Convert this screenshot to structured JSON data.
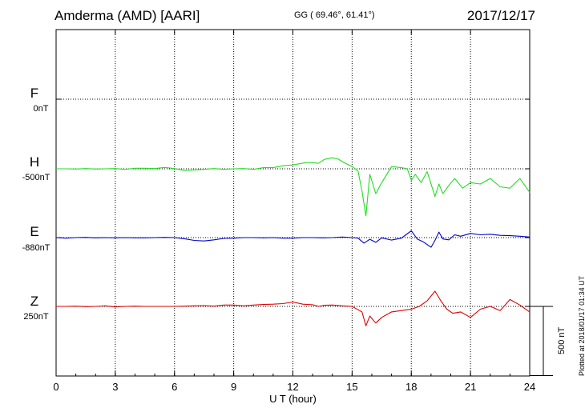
{
  "header": {
    "station": "Amderma (AMD)  [AARI]",
    "coords": "GG ( 69.46°,  61.41°)",
    "date": "2017/12/17"
  },
  "side_note": "Plotted at 2018/01/17 01:34 UT",
  "scale_bar_label": "500 nT",
  "components": [
    {
      "name": "F",
      "baseline_label": "0nT",
      "color": "#ffa500"
    },
    {
      "name": "H",
      "baseline_label": "-500nT",
      "color": "#22dd22"
    },
    {
      "name": "E",
      "baseline_label": "-880nT",
      "color": "#0000cc"
    },
    {
      "name": "Z",
      "baseline_label": "250nT",
      "color": "#dd0000"
    }
  ],
  "chart_data": {
    "type": "line",
    "title": "Amderma (AMD)  [AARI]",
    "xlabel": "U T (hour)",
    "xlim": [
      0,
      24
    ],
    "xticks": [
      0,
      3,
      6,
      9,
      12,
      15,
      18,
      21,
      24
    ],
    "ylabel": "",
    "grid": true,
    "scale_bar_nT": 500,
    "series": [
      {
        "name": "H",
        "unit": "nT offset from baseline",
        "x": [
          0,
          0.5,
          1,
          1.5,
          2,
          2.5,
          3,
          3.5,
          4,
          4.5,
          5,
          5.5,
          6,
          6.5,
          7,
          7.5,
          8,
          8.5,
          9,
          9.5,
          10,
          10.5,
          11,
          11.5,
          12,
          12.3,
          12.7,
          13,
          13.3,
          13.6,
          14,
          14.3,
          14.6,
          15,
          15.3,
          15.5,
          15.7,
          15.9,
          16.2,
          16.5,
          17,
          17.5,
          17.8,
          18,
          18.2,
          18.5,
          18.8,
          19.2,
          19.4,
          19.6,
          19.9,
          20.2,
          20.6,
          21,
          21.5,
          22,
          22.5,
          23,
          23.5,
          24
        ],
        "y": [
          0,
          0,
          -2,
          2,
          -2,
          0,
          2,
          -4,
          4,
          4,
          2,
          10,
          2,
          -12,
          -8,
          -4,
          2,
          -4,
          0,
          2,
          -4,
          8,
          8,
          22,
          28,
          36,
          46,
          44,
          40,
          68,
          80,
          70,
          44,
          16,
          -16,
          -160,
          -340,
          -40,
          -180,
          -100,
          16,
          8,
          0,
          -84,
          -40,
          -100,
          -20,
          -200,
          -110,
          -180,
          -120,
          -70,
          -140,
          -100,
          -110,
          -70,
          -130,
          -140,
          -70,
          -170
        ]
      },
      {
        "name": "E",
        "unit": "nT offset from baseline",
        "x": [
          0,
          0.5,
          1,
          1.5,
          2,
          2.5,
          3,
          3.5,
          4,
          4.5,
          5,
          5.5,
          6,
          6.5,
          7,
          7.5,
          8,
          8.5,
          9,
          9.5,
          10,
          10.5,
          11,
          11.5,
          12,
          12.5,
          13,
          13.5,
          14,
          14.5,
          15,
          15.3,
          15.6,
          15.9,
          16.2,
          16.5,
          17,
          17.5,
          18,
          18.3,
          18.6,
          19,
          19.2,
          19.4,
          19.6,
          19.9,
          20.2,
          20.5,
          21,
          21.5,
          22,
          22.5,
          23,
          23.5,
          24
        ],
        "y": [
          0,
          -4,
          0,
          2,
          -2,
          0,
          -2,
          0,
          -2,
          -2,
          0,
          2,
          0,
          -8,
          -20,
          -24,
          -16,
          -6,
          -4,
          0,
          0,
          -2,
          0,
          -4,
          -4,
          0,
          0,
          -2,
          0,
          4,
          0,
          -4,
          -40,
          -12,
          -34,
          -2,
          -18,
          -4,
          50,
          -10,
          -30,
          -70,
          -20,
          40,
          -10,
          -16,
          20,
          10,
          30,
          20,
          24,
          16,
          14,
          10,
          4
        ]
      },
      {
        "name": "Z",
        "unit": "nT offset from baseline",
        "x": [
          0,
          0.5,
          1,
          1.5,
          2,
          2.5,
          3,
          3.5,
          4,
          4.5,
          5,
          5.5,
          6,
          6.5,
          7,
          7.5,
          8,
          8.5,
          9,
          9.5,
          10,
          10.5,
          11,
          11.5,
          12,
          12.5,
          13,
          13.3,
          13.6,
          14,
          14.5,
          15,
          15.3,
          15.5,
          15.7,
          15.9,
          16.2,
          16.5,
          17,
          17.5,
          18,
          18.4,
          18.8,
          19.2,
          19.5,
          19.8,
          20.1,
          20.5,
          21,
          21.5,
          22,
          22.5,
          23,
          23.5,
          24
        ],
        "y": [
          0,
          0,
          2,
          -2,
          0,
          4,
          -4,
          0,
          2,
          0,
          0,
          0,
          0,
          2,
          4,
          6,
          2,
          10,
          10,
          4,
          10,
          14,
          16,
          20,
          32,
          16,
          12,
          0,
          8,
          10,
          4,
          0,
          -24,
          -40,
          -140,
          -70,
          -120,
          -80,
          -40,
          -30,
          -20,
          0,
          40,
          110,
          40,
          -20,
          -50,
          -40,
          -80,
          -20,
          0,
          -30,
          50,
          10,
          -40
        ]
      }
    ],
    "lines": [
      {
        "name": "F",
        "note": "baseline only, no data drawn"
      }
    ]
  }
}
